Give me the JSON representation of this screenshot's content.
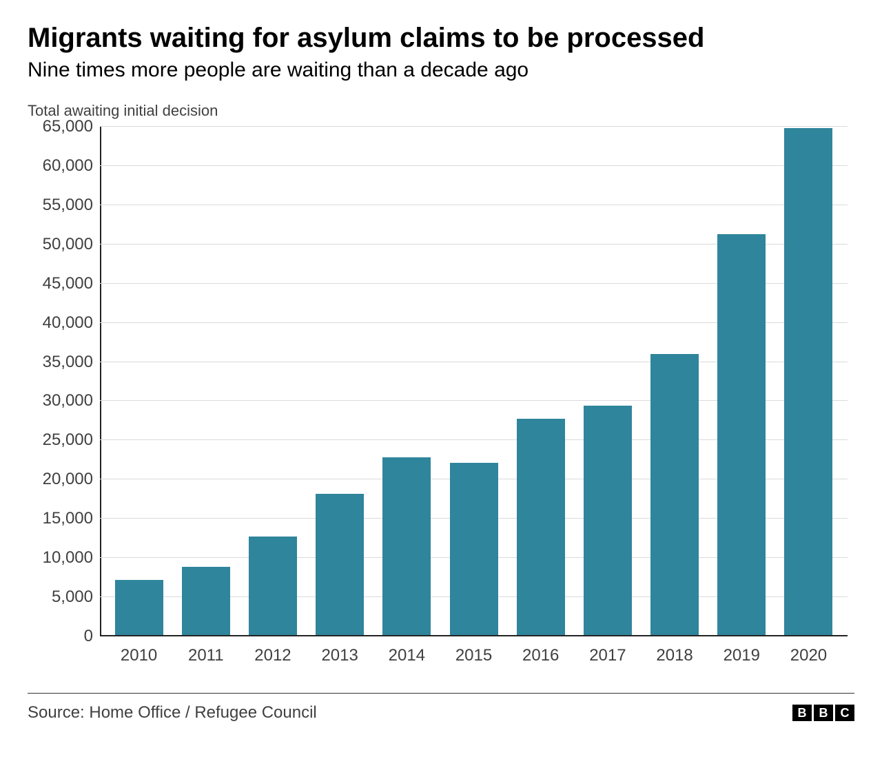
{
  "chart": {
    "type": "bar",
    "title": "Migrants waiting for asylum claims to be processed",
    "subtitle": "Nine times more people are waiting than a decade ago",
    "y_axis_title": "Total awaiting initial decision",
    "title_fontsize": 40,
    "subtitle_fontsize": 30,
    "axis_title_fontsize": 22,
    "tick_fontsize": 24,
    "categories": [
      "2010",
      "2011",
      "2012",
      "2013",
      "2014",
      "2015",
      "2016",
      "2017",
      "2018",
      "2019",
      "2020"
    ],
    "values": [
      7200,
      8900,
      12700,
      18200,
      22800,
      22100,
      27800,
      29400,
      36000,
      51300,
      64800
    ],
    "bar_color": "#2f859b",
    "background_color": "#ffffff",
    "grid_color": "#dadada",
    "axis_color": "#222222",
    "text_color": "#404040",
    "ylim": [
      0,
      65000
    ],
    "ytick_step": 5000,
    "y_ticks": [
      0,
      5000,
      10000,
      15000,
      20000,
      25000,
      30000,
      35000,
      40000,
      45000,
      50000,
      55000,
      60000,
      65000
    ],
    "y_tick_labels": [
      "0",
      "5,000",
      "10,000",
      "15,000",
      "20,000",
      "25,000",
      "30,000",
      "35,000",
      "40,000",
      "45,000",
      "50,000",
      "55,000",
      "60,000",
      "65,000"
    ],
    "bar_width_ratio": 0.72
  },
  "footer": {
    "source": "Source: Home Office / Refugee Council",
    "source_fontsize": 24,
    "logo_letters": [
      "B",
      "B",
      "C"
    ]
  }
}
